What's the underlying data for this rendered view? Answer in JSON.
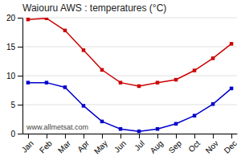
{
  "chart_data": {
    "type": "line",
    "title": "Waiouru AWS : temperatures (°C)",
    "categories": [
      "Jan",
      "Feb",
      "Mar",
      "Apr",
      "May",
      "Jun",
      "Jul",
      "Aug",
      "Sep",
      "Oct",
      "Nov",
      "Dec"
    ],
    "series": [
      {
        "color": "#cc0000",
        "marker": "square",
        "values": [
          19.7,
          19.9,
          17.8,
          14.4,
          11.0,
          8.8,
          8.2,
          8.8,
          9.3,
          10.9,
          13.0,
          15.5
        ]
      },
      {
        "color": "#0000cc",
        "marker": "square",
        "values": [
          8.8,
          8.8,
          8.0,
          4.8,
          2.1,
          0.8,
          0.4,
          0.8,
          1.7,
          3.1,
          5.1,
          7.8
        ]
      }
    ],
    "ylim": [
      0,
      20
    ],
    "yticks": [
      0,
      5,
      10,
      15,
      20
    ],
    "grid": true,
    "annotations": [
      "www.allmetsat.com"
    ]
  }
}
